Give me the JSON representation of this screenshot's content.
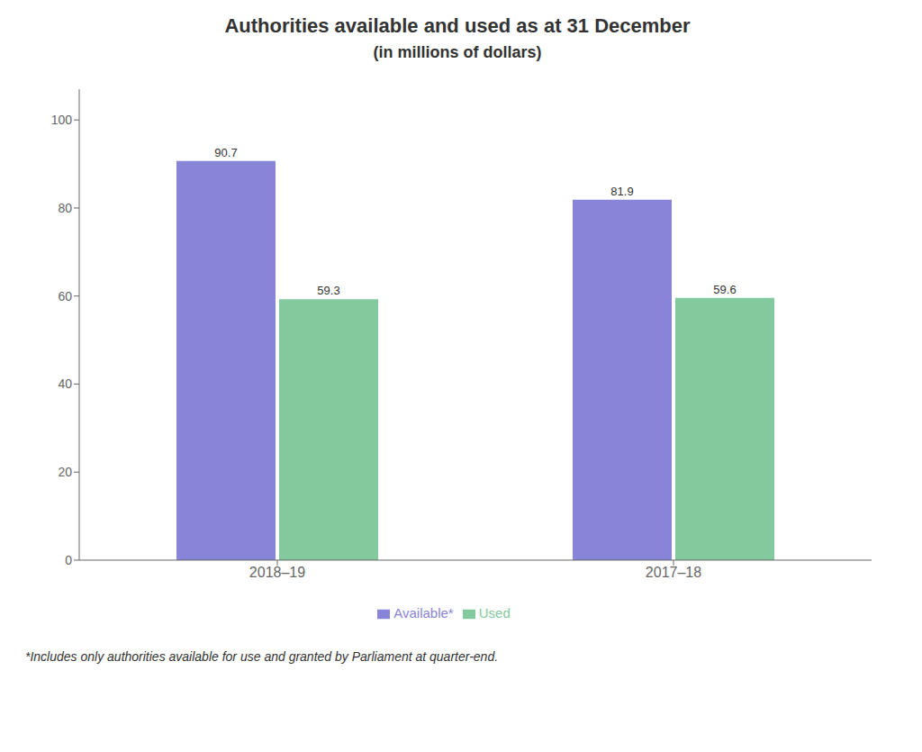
{
  "chart_data": {
    "type": "bar",
    "title": "Authorities available and used as at 31 December",
    "subtitle": "(in millions of dollars)",
    "categories": [
      "2018–19",
      "2017–18"
    ],
    "series": [
      {
        "name": "Available*",
        "values": [
          90.7,
          81.9
        ]
      },
      {
        "name": "Used",
        "values": [
          59.3,
          59.6
        ]
      }
    ],
    "ylim": [
      0,
      107
    ],
    "yticks": [
      0,
      20,
      40,
      60,
      80,
      100
    ],
    "grid": false,
    "legend": "bottom",
    "data_labels": true,
    "annotations": [
      "*Includes only authorities available for use and granted by Parliament at quarter-end."
    ]
  }
}
